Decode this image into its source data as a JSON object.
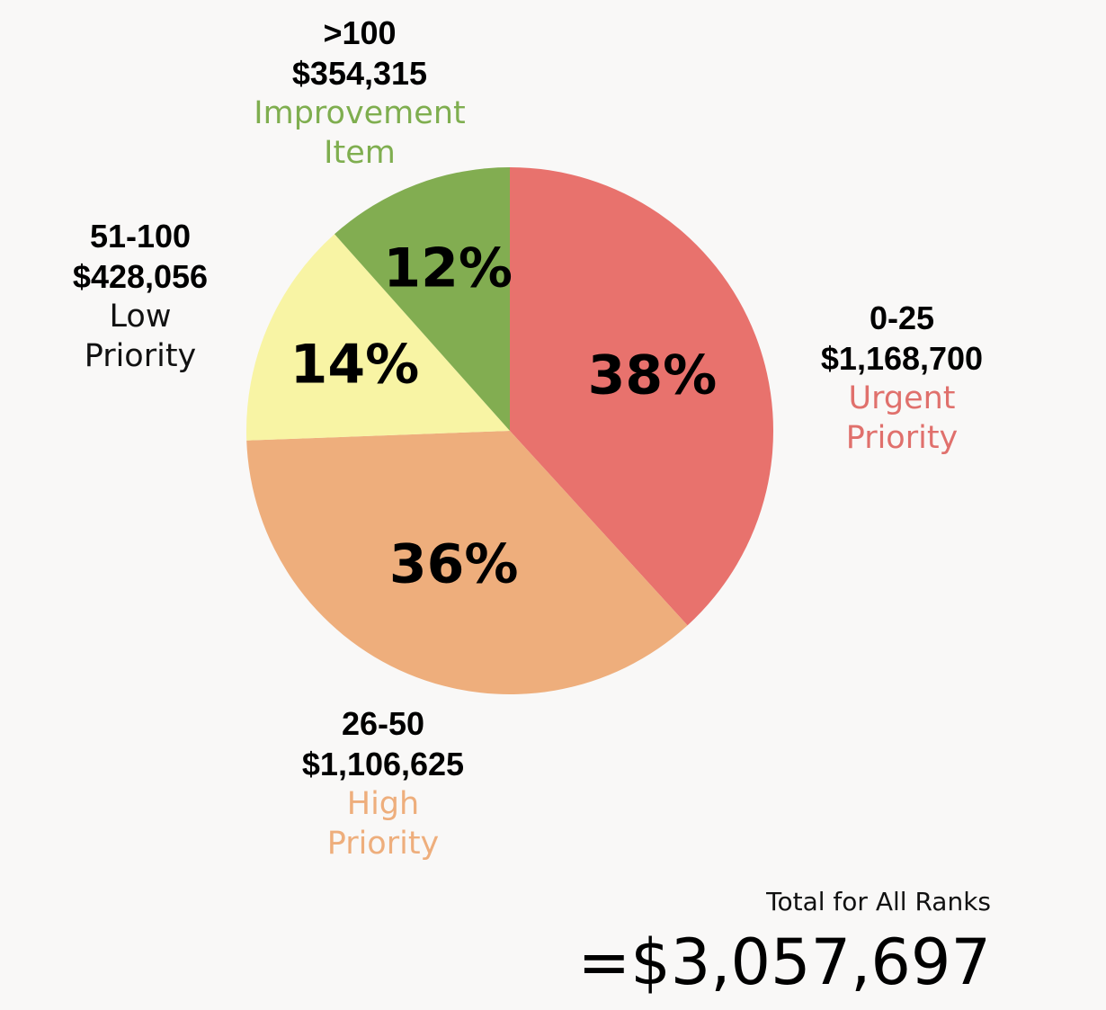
{
  "chart_data": {
    "type": "pie",
    "slices": [
      {
        "name": "Urgent Priority",
        "range": "0-25",
        "amount": "$1,168,700",
        "value": 1168700,
        "percent_label": "38%",
        "color": "#e8726d",
        "label_color": "#e0706c"
      },
      {
        "name": "High Priority",
        "range": "26-50",
        "amount": "$1,106,625",
        "value": 1106625,
        "percent_label": "36%",
        "color": "#eeae7c",
        "label_color": "#eeae7c"
      },
      {
        "name": "Low Priority",
        "range": "51-100",
        "amount": "$428,056",
        "value": 428056,
        "percent_label": "14%",
        "color": "#f8f4a4",
        "label_color": "#111111"
      },
      {
        "name": "Improvement Item",
        "range": ">100",
        "amount": "$354,315",
        "value": 354315,
        "percent_label": "12%",
        "color": "#82ad51",
        "label_color": "#7fae4f"
      }
    ],
    "categories": {
      "urgent": [
        "Urgent",
        "Priority"
      ],
      "high": [
        "High",
        "Priority"
      ],
      "low": [
        "Low",
        "Priority"
      ],
      "improvement": [
        "Improvement",
        "Item"
      ]
    },
    "total_caption": "Total for All Ranks",
    "total_value": "=$3,057,697"
  }
}
